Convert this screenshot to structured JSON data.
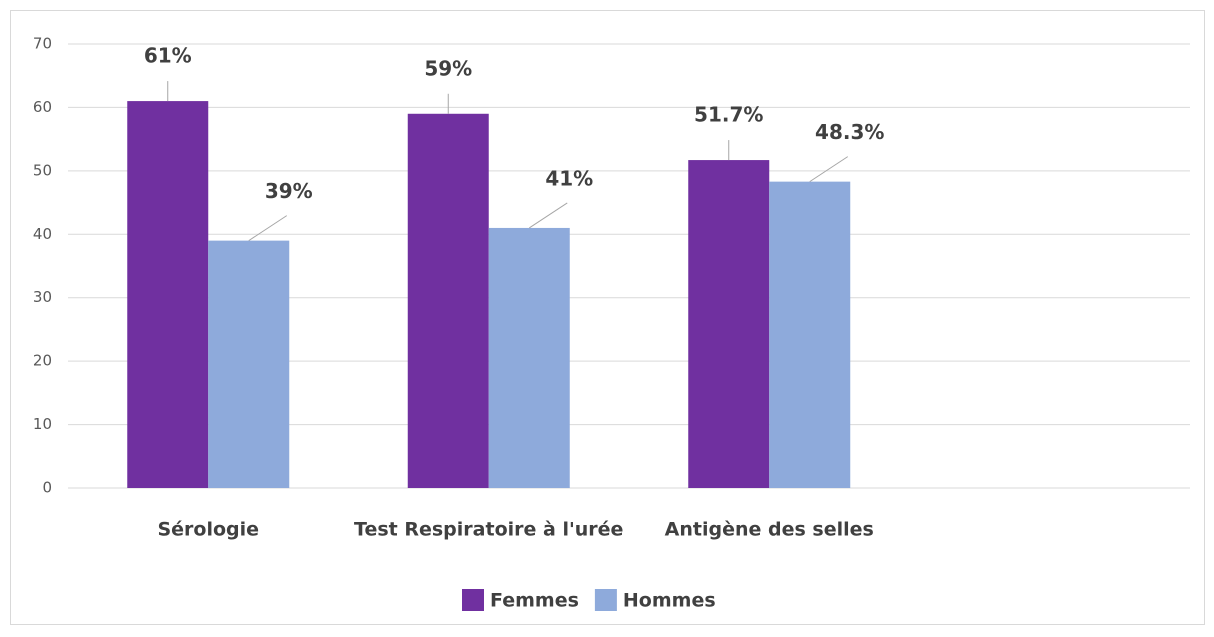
{
  "chart_data": {
    "type": "bar",
    "categories": [
      "Sérologie",
      "Test Respiratoire à l'urée",
      "Antigène des selles",
      null
    ],
    "series": [
      {
        "name": "Femmes",
        "color": "#7030a0",
        "values": [
          61,
          59,
          51.7,
          null
        ],
        "value_labels": [
          "61%",
          "59%",
          "51.7%",
          null
        ]
      },
      {
        "name": "Hommes",
        "color": "#8eaadb",
        "values": [
          39,
          41,
          48.3,
          null
        ],
        "value_labels": [
          "39%",
          "41%",
          "48.3%",
          null
        ]
      }
    ],
    "ylim": [
      0,
      70
    ],
    "yticks": [
      0,
      10,
      20,
      30,
      40,
      50,
      60,
      70
    ],
    "grid": true,
    "legend": "bottom"
  }
}
